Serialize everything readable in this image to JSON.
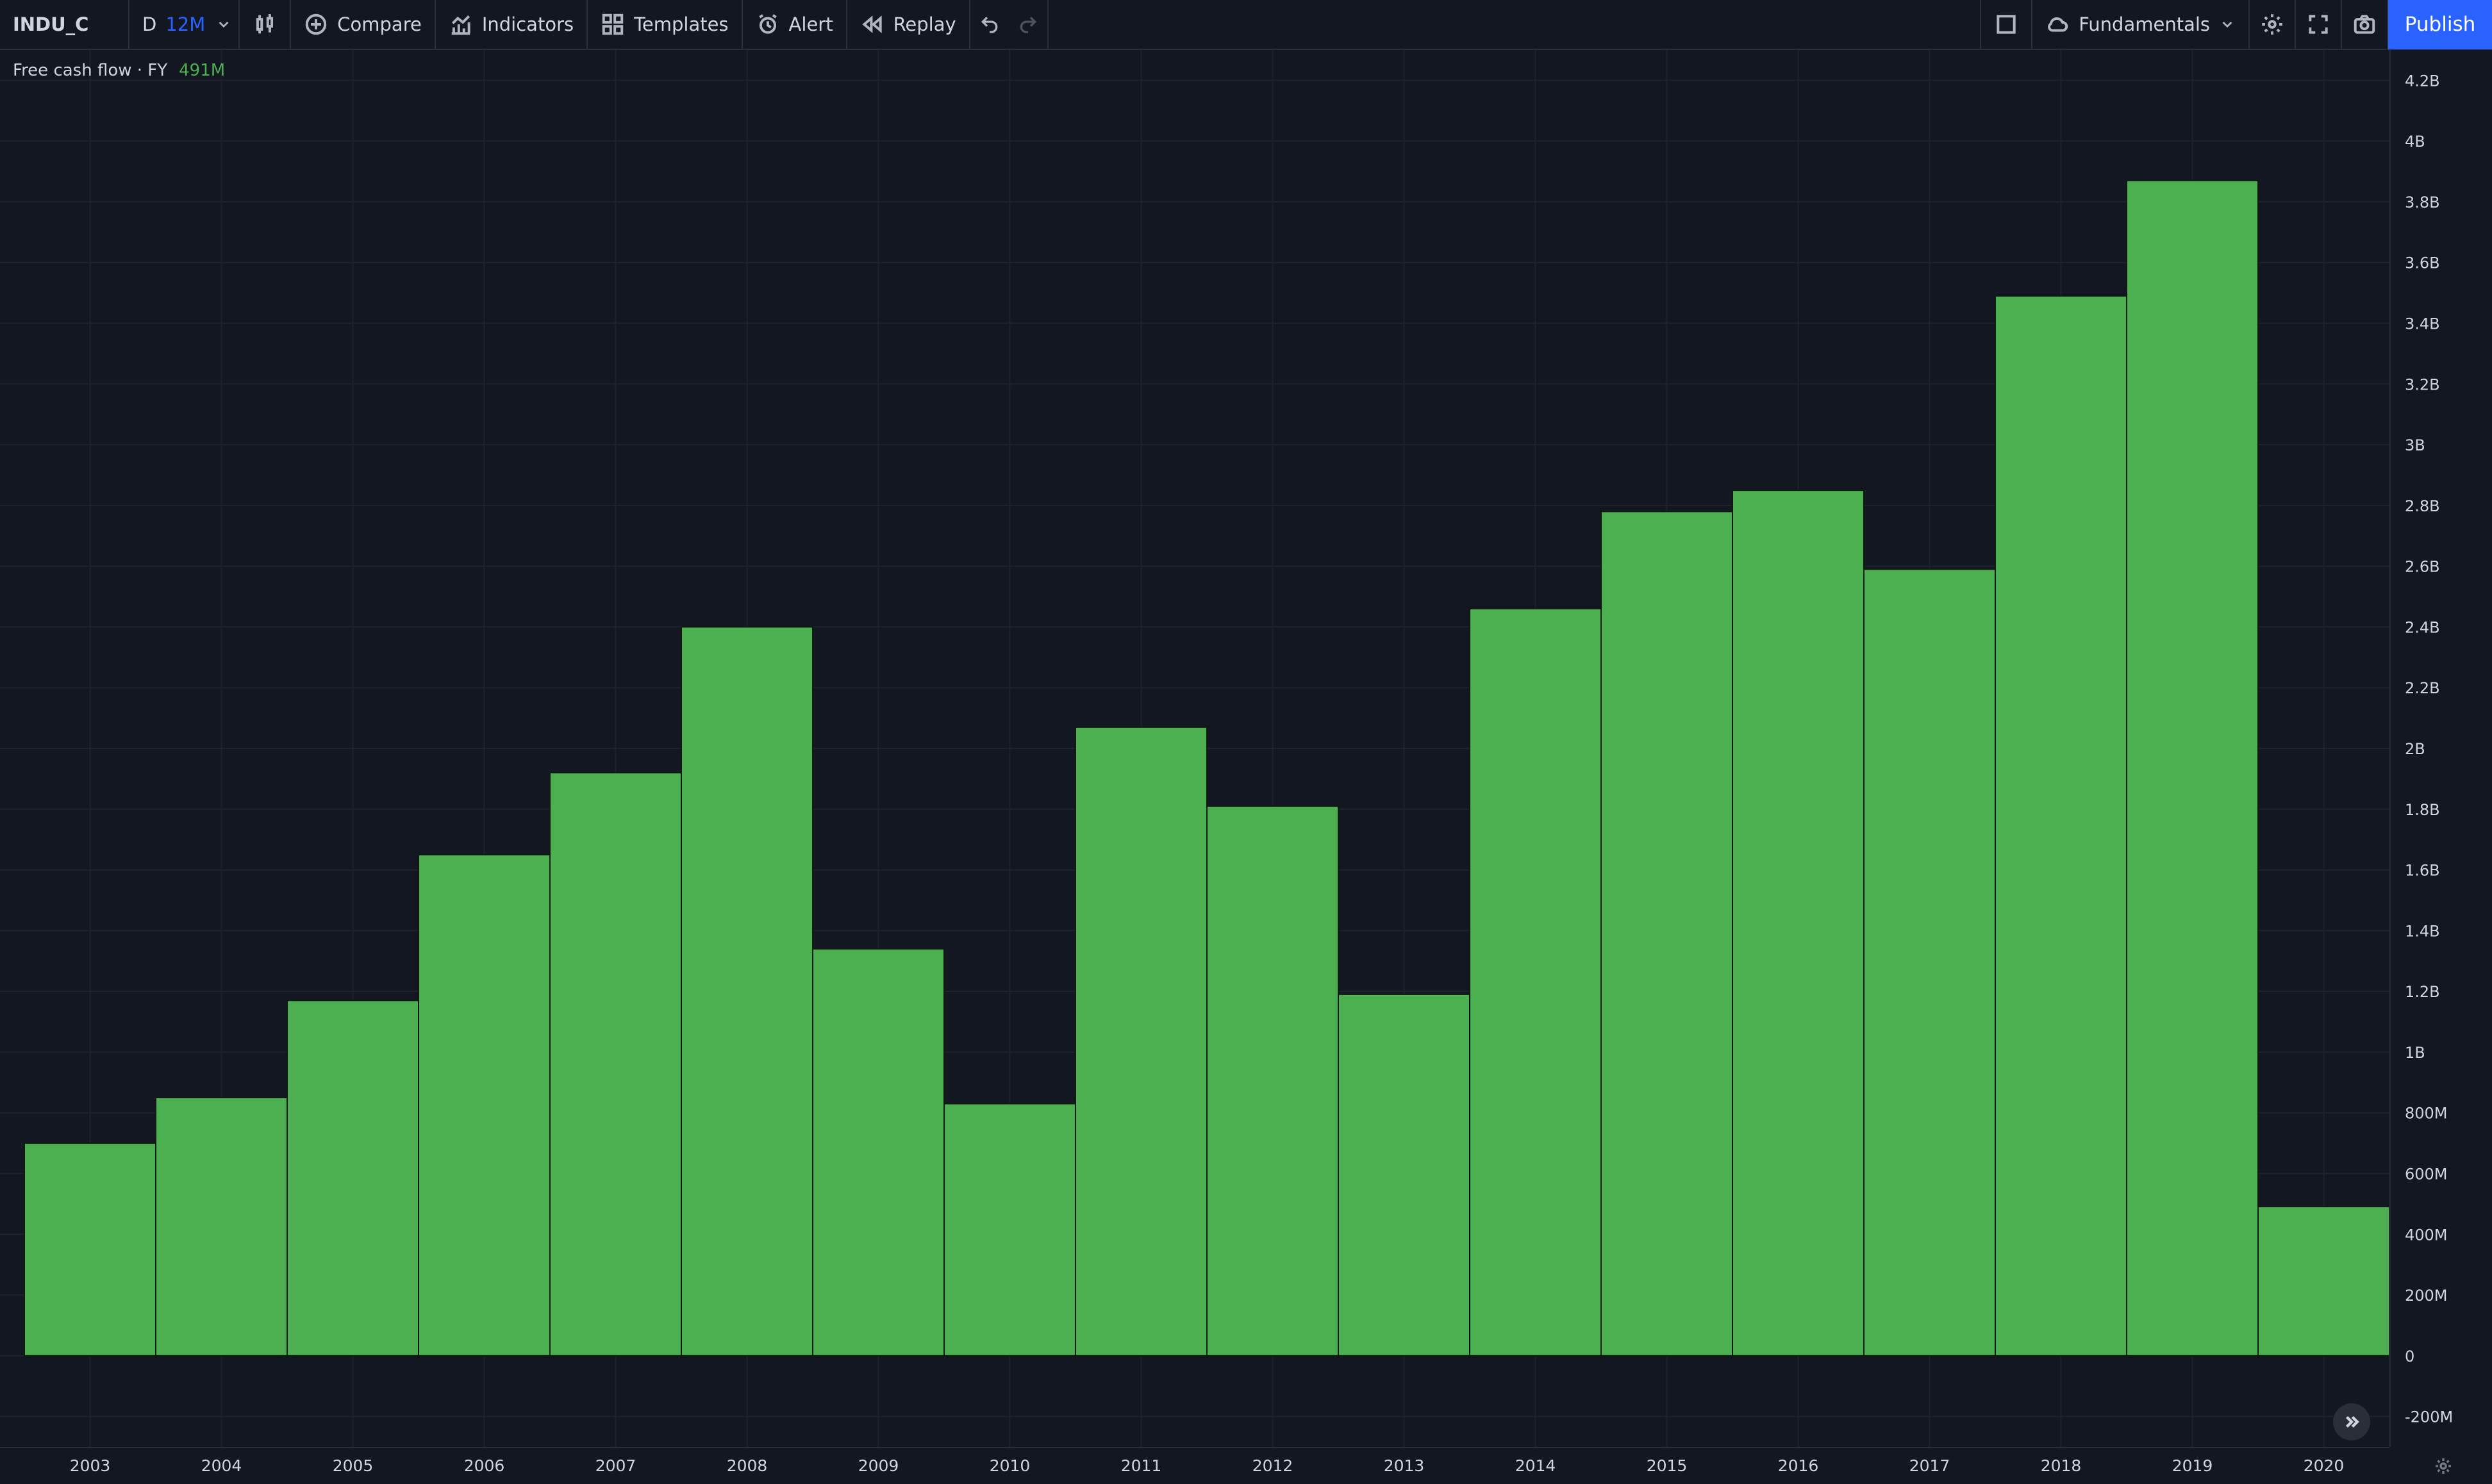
{
  "toolbar": {
    "symbol": "INDU_C",
    "interval_day": "D",
    "interval_active": "12M",
    "compare": "Compare",
    "indicators": "Indicators",
    "templates": "Templates",
    "alert": "Alert",
    "replay": "Replay",
    "fundamentals": "Fundamentals",
    "publish": "Publish"
  },
  "legend": {
    "title": "Free cash flow · FY",
    "value": "491M"
  },
  "colors": {
    "background": "#131722",
    "bar": "#4caf50",
    "bar_border": "#0e1a10",
    "grid": "#1e222d",
    "accent": "#2962ff",
    "axis_text": "#d1d4dc"
  },
  "chart_data": {
    "type": "bar",
    "categories": [
      "2003",
      "2004",
      "2005",
      "2006",
      "2007",
      "2008",
      "2009",
      "2010",
      "2011",
      "2012",
      "2013",
      "2014",
      "2015",
      "2016",
      "2017",
      "2018",
      "2019",
      "2020"
    ],
    "values": [
      0.7,
      0.85,
      1.17,
      1.65,
      1.92,
      2.4,
      1.34,
      0.83,
      2.07,
      1.81,
      1.19,
      2.46,
      2.78,
      2.85,
      2.59,
      3.49,
      3.87,
      0.491
    ],
    "value_unit": "B",
    "ylim": [
      -0.3,
      4.3
    ],
    "yticks": [
      -0.2,
      0,
      0.2,
      0.4,
      0.6,
      0.8,
      1.0,
      1.2,
      1.4,
      1.6,
      1.8,
      2.0,
      2.2,
      2.4,
      2.6,
      2.8,
      3.0,
      3.2,
      3.4,
      3.6,
      3.8,
      4.0,
      4.2
    ],
    "ytick_labels": [
      "-200M",
      "0",
      "200M",
      "400M",
      "600M",
      "800M",
      "1B",
      "1.2B",
      "1.4B",
      "1.6B",
      "1.8B",
      "2B",
      "2.2B",
      "2.4B",
      "2.6B",
      "2.8B",
      "3B",
      "3.2B",
      "3.4B",
      "3.6B",
      "3.8B",
      "4B",
      "4.2B"
    ],
    "grid": true,
    "title": "",
    "xlabel": "",
    "ylabel": ""
  }
}
